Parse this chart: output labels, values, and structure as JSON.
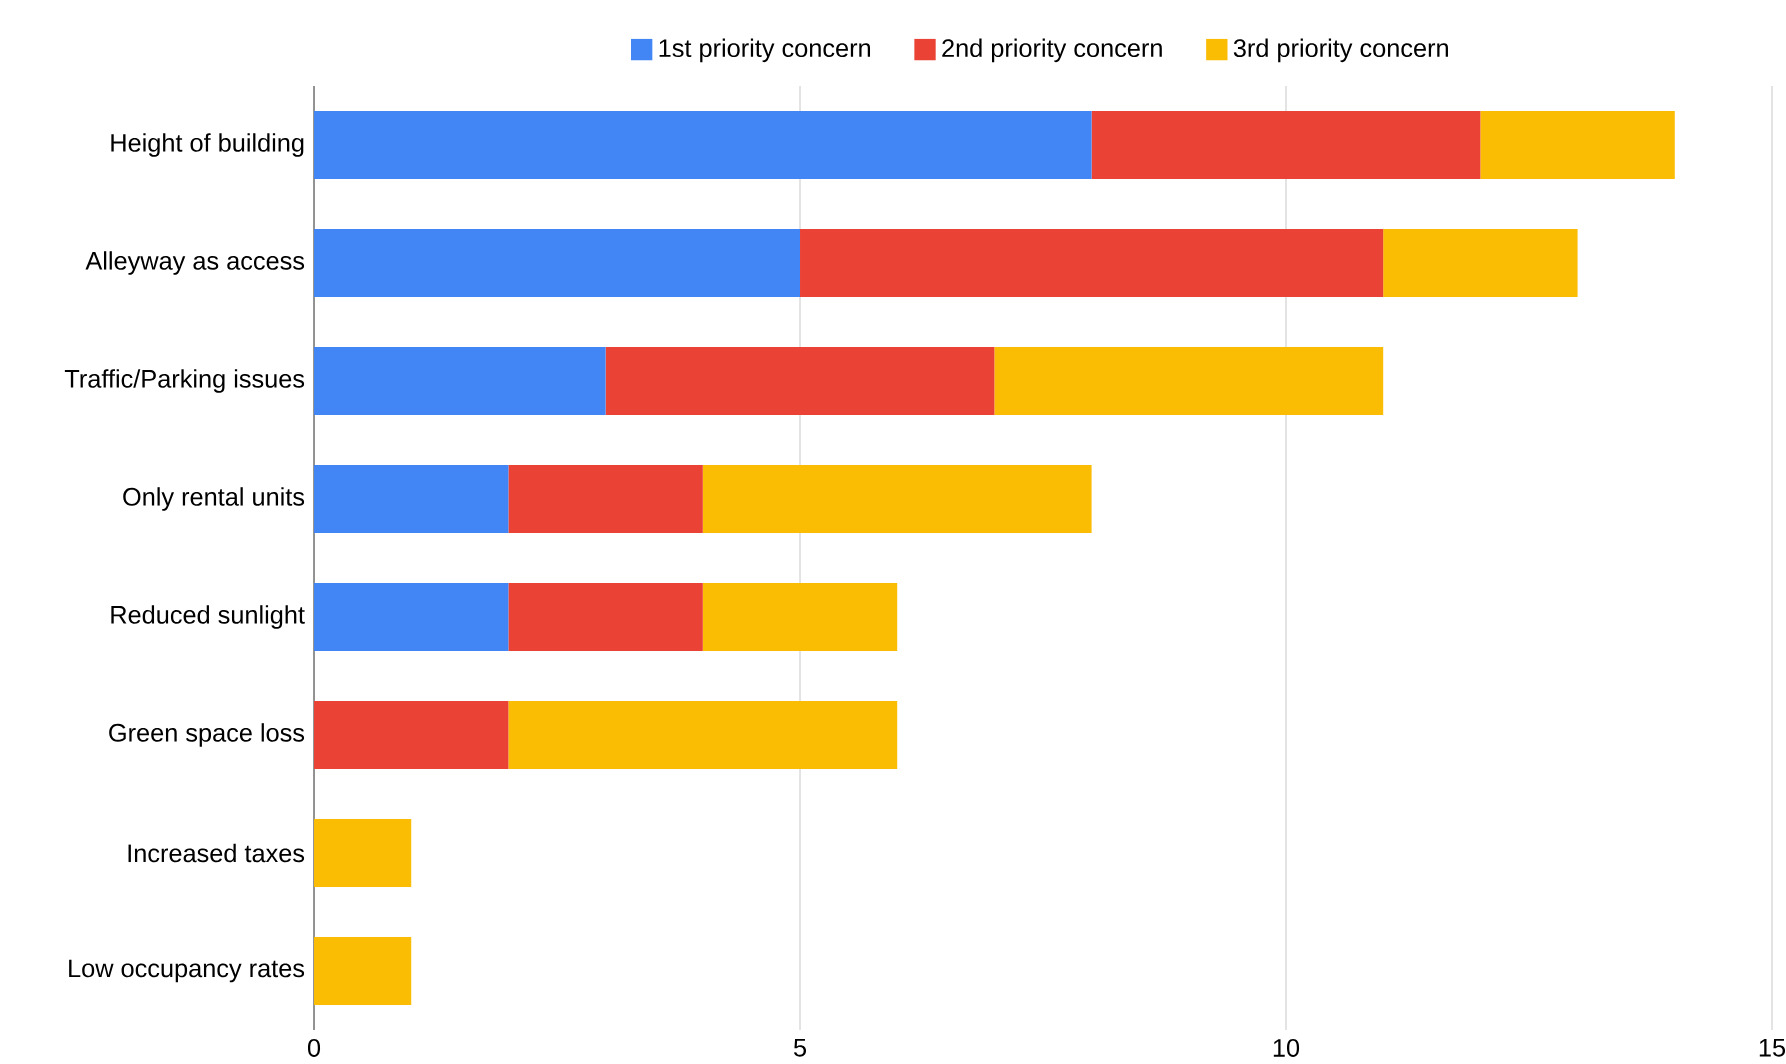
{
  "chart_data": {
    "type": "bar",
    "orientation": "horizontal",
    "stacked": true,
    "categories": [
      "Height of building",
      "Alleyway as access",
      "Traffic/Parking issues",
      "Only rental units",
      "Reduced sunlight",
      "Green space loss",
      "Increased taxes",
      "Low occupancy rates"
    ],
    "series": [
      {
        "name": "1st priority concern",
        "color": "#4285f4",
        "values": [
          8,
          5,
          3,
          2,
          2,
          0,
          0,
          0
        ]
      },
      {
        "name": "2nd priority concern",
        "color": "#ea4335",
        "values": [
          4,
          6,
          4,
          2,
          2,
          2,
          0,
          0
        ]
      },
      {
        "name": "3rd priority concern",
        "color": "#fbbc04",
        "values": [
          2,
          2,
          4,
          4,
          2,
          4,
          1,
          1
        ]
      }
    ],
    "xlim": [
      0,
      15
    ],
    "xticks": [
      0,
      5,
      10,
      15
    ],
    "grid": "x",
    "legend": "top"
  }
}
